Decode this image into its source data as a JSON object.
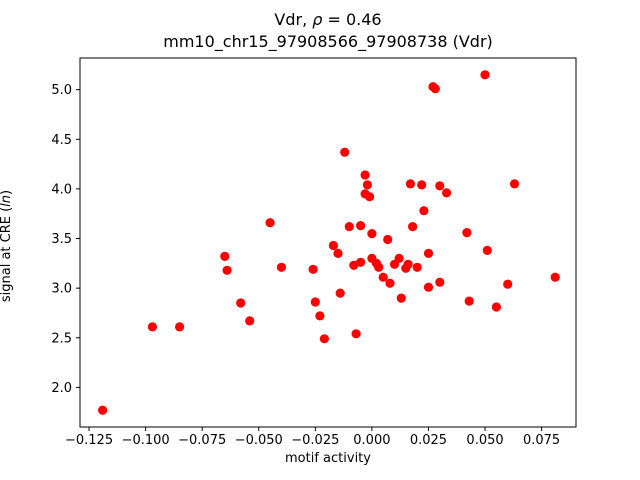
{
  "figure": {
    "title_line1": {
      "prefix": "Vdr, ",
      "italic": "ρ",
      "suffix": " = 0.46"
    },
    "title_line2": "mm10_chr15_97908566_97908738 (Vdr)",
    "xlabel": "motif activity",
    "ylabel": {
      "prefix": "signal at CRE (",
      "italic": "ln",
      "suffix": ")"
    }
  },
  "chart_data": {
    "type": "scatter",
    "title": "Vdr, ρ = 0.46",
    "subtitle": "mm10_chr15_97908566_97908738 (Vdr)",
    "xlabel": "motif activity",
    "ylabel": "signal at CRE (ln)",
    "legend": "none",
    "grid": false,
    "marker_color": "#ff0000",
    "marker_radius_px": 4.6,
    "xlim": [
      -0.129,
      0.0902
    ],
    "ylim": [
      1.601,
      5.319
    ],
    "xticks": {
      "values": [
        -0.125,
        -0.1,
        -0.075,
        -0.05,
        -0.025,
        0.0,
        0.025,
        0.05,
        0.075
      ],
      "labels": [
        "−0.125",
        "−0.100",
        "−0.075",
        "−0.050",
        "−0.025",
        "0.000",
        "0.025",
        "0.050",
        "0.075"
      ]
    },
    "yticks": {
      "values": [
        2.0,
        2.5,
        3.0,
        3.5,
        4.0,
        4.5,
        5.0
      ],
      "labels": [
        "2.0",
        "2.5",
        "3.0",
        "3.5",
        "4.0",
        "4.5",
        "5.0"
      ]
    },
    "points": [
      [
        -0.119,
        1.77
      ],
      [
        -0.097,
        2.61
      ],
      [
        -0.085,
        2.61
      ],
      [
        -0.065,
        3.32
      ],
      [
        -0.064,
        3.18
      ],
      [
        -0.058,
        2.85
      ],
      [
        -0.054,
        2.67
      ],
      [
        -0.045,
        3.66
      ],
      [
        -0.04,
        3.21
      ],
      [
        -0.026,
        3.19
      ],
      [
        -0.025,
        2.86
      ],
      [
        -0.023,
        2.72
      ],
      [
        -0.021,
        2.49
      ],
      [
        -0.017,
        3.43
      ],
      [
        -0.015,
        3.35
      ],
      [
        -0.014,
        2.95
      ],
      [
        -0.012,
        4.37
      ],
      [
        -0.01,
        3.62
      ],
      [
        -0.008,
        3.23
      ],
      [
        -0.007,
        2.54
      ],
      [
        -0.005,
        3.63
      ],
      [
        -0.005,
        3.26
      ],
      [
        -0.003,
        4.14
      ],
      [
        -0.003,
        3.95
      ],
      [
        -0.002,
        4.04
      ],
      [
        -0.001,
        3.92
      ],
      [
        0.0,
        3.55
      ],
      [
        0.0,
        3.3
      ],
      [
        0.002,
        3.25
      ],
      [
        0.003,
        3.21
      ],
      [
        0.005,
        3.11
      ],
      [
        0.007,
        3.49
      ],
      [
        0.008,
        3.05
      ],
      [
        0.01,
        3.24
      ],
      [
        0.012,
        3.3
      ],
      [
        0.013,
        2.9
      ],
      [
        0.015,
        3.2
      ],
      [
        0.016,
        3.24
      ],
      [
        0.017,
        4.05
      ],
      [
        0.018,
        3.62
      ],
      [
        0.02,
        3.21
      ],
      [
        0.022,
        4.04
      ],
      [
        0.023,
        3.78
      ],
      [
        0.025,
        3.35
      ],
      [
        0.025,
        3.01
      ],
      [
        0.027,
        5.03
      ],
      [
        0.028,
        5.01
      ],
      [
        0.03,
        4.03
      ],
      [
        0.03,
        3.06
      ],
      [
        0.033,
        3.96
      ],
      [
        0.042,
        3.56
      ],
      [
        0.043,
        2.87
      ],
      [
        0.05,
        5.15
      ],
      [
        0.051,
        3.38
      ],
      [
        0.055,
        2.81
      ],
      [
        0.06,
        3.04
      ],
      [
        0.063,
        4.05
      ],
      [
        0.081,
        3.11
      ]
    ]
  }
}
